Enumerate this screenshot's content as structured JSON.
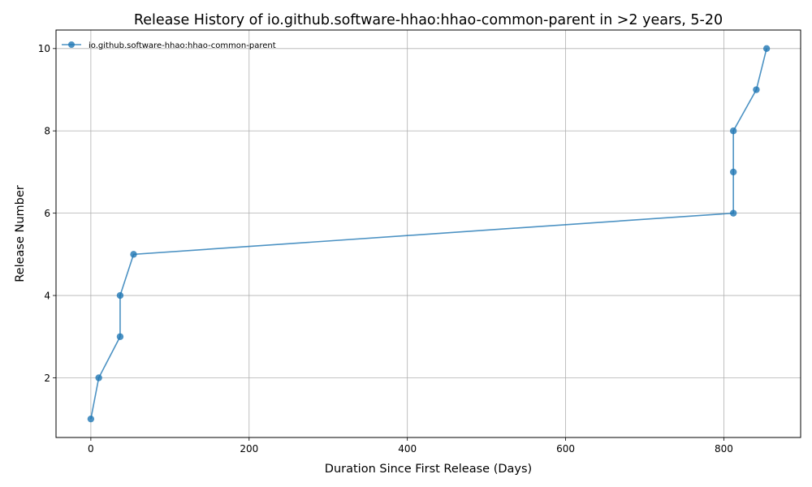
{
  "chart_data": {
    "type": "line",
    "title": "Release History of io.github.software-hhao:hhao-common-parent in >2 years, 5-20",
    "xlabel": "Duration Since First Release (Days)",
    "ylabel": "Release Number",
    "xlim": [
      -44,
      897
    ],
    "ylim": [
      0.55,
      10.45
    ],
    "xticks": [
      0,
      200,
      400,
      600,
      800
    ],
    "yticks": [
      2,
      4,
      6,
      8,
      10
    ],
    "grid": true,
    "legend_position": "top-left",
    "series": [
      {
        "name": "io.github.software-hhao:hhao-common-parent",
        "color": "#1f77b4",
        "x": [
          0,
          10,
          37,
          37,
          54,
          812,
          812,
          812,
          841,
          854
        ],
        "y": [
          1,
          2,
          3,
          4,
          5,
          6,
          7,
          8,
          9,
          10
        ]
      }
    ]
  }
}
